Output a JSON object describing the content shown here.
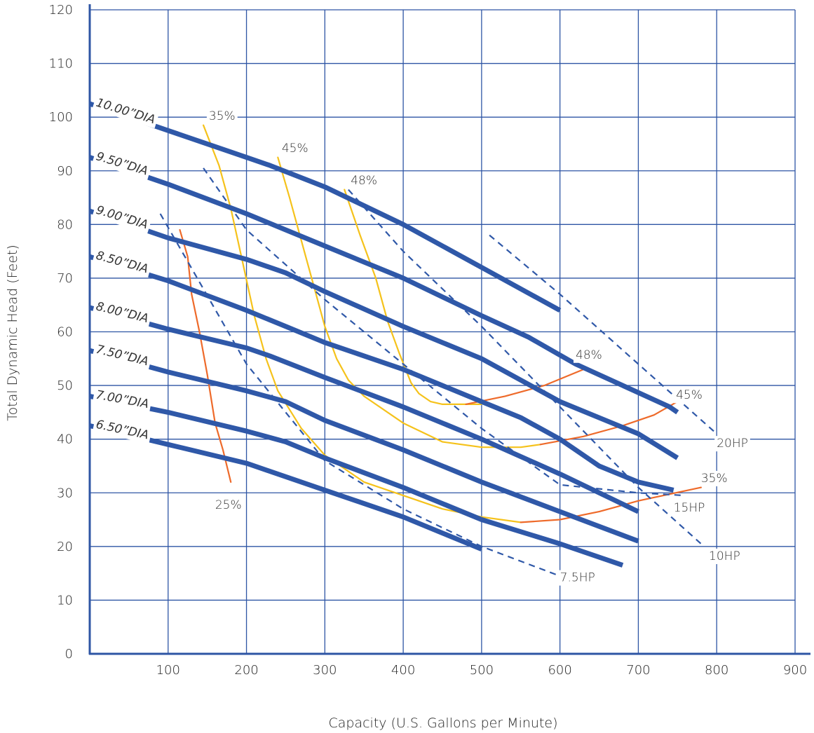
{
  "chart_data": {
    "type": "line",
    "xlabel": "Capacity (U.S. Gallons per Minute)",
    "ylabel": "Total Dynamic Head (Feet)",
    "xlim": [
      0,
      900
    ],
    "ylim": [
      0,
      120
    ],
    "xticks": [
      100,
      200,
      300,
      400,
      500,
      600,
      700,
      800,
      900
    ],
    "yticks": [
      0,
      10,
      20,
      30,
      40,
      50,
      60,
      70,
      80,
      90,
      100,
      110,
      120
    ],
    "grid": true,
    "colors": {
      "grid": "#2e55a4",
      "axis": "#2e55a4",
      "impeller": "#2f58a8",
      "horsepower": "#2f58a8",
      "eff_yellow": "#f5c21b",
      "eff_orange": "#ee6a2a"
    },
    "impeller_curves": [
      {
        "name": "10.00”DIA",
        "points": [
          [
            0,
            102.5
          ],
          [
            100,
            97.5
          ],
          [
            200,
            92.5
          ],
          [
            230,
            91
          ],
          [
            300,
            87
          ],
          [
            400,
            80
          ],
          [
            500,
            72
          ],
          [
            600,
            64
          ]
        ]
      },
      {
        "name": "9.50”DIA",
        "points": [
          [
            0,
            92.5
          ],
          [
            100,
            87.5
          ],
          [
            200,
            82
          ],
          [
            250,
            79
          ],
          [
            300,
            76
          ],
          [
            400,
            70
          ],
          [
            500,
            63
          ],
          [
            560,
            59
          ],
          [
            620,
            54
          ],
          [
            680,
            50
          ],
          [
            740,
            46
          ],
          [
            750,
            45
          ]
        ]
      },
      {
        "name": "9.00”DIA",
        "points": [
          [
            0,
            82.5
          ],
          [
            100,
            77.5
          ],
          [
            200,
            73.5
          ],
          [
            250,
            71
          ],
          [
            300,
            67.5
          ],
          [
            400,
            61
          ],
          [
            500,
            55
          ],
          [
            550,
            51
          ],
          [
            600,
            47
          ],
          [
            700,
            41
          ],
          [
            750,
            36.5
          ]
        ]
      },
      {
        "name": "8.50”DIA",
        "points": [
          [
            0,
            74
          ],
          [
            100,
            69.5
          ],
          [
            200,
            64
          ],
          [
            250,
            61
          ],
          [
            300,
            58
          ],
          [
            400,
            53
          ],
          [
            500,
            47
          ],
          [
            550,
            44
          ],
          [
            600,
            40
          ],
          [
            650,
            35
          ],
          [
            700,
            32
          ],
          [
            745,
            30.5
          ]
        ]
      },
      {
        "name": "8.00”DIA",
        "points": [
          [
            0,
            64.5
          ],
          [
            100,
            60.5
          ],
          [
            200,
            57
          ],
          [
            230,
            55.5
          ],
          [
            300,
            51.5
          ],
          [
            400,
            46
          ],
          [
            500,
            40
          ],
          [
            600,
            33.5
          ],
          [
            700,
            26.5
          ]
        ]
      },
      {
        "name": "7.50”DIA",
        "points": [
          [
            0,
            56.5
          ],
          [
            100,
            52.5
          ],
          [
            200,
            49
          ],
          [
            250,
            47
          ],
          [
            300,
            43.5
          ],
          [
            400,
            38
          ],
          [
            500,
            32
          ],
          [
            600,
            26.5
          ],
          [
            700,
            21
          ]
        ]
      },
      {
        "name": "7.00”DIA",
        "points": [
          [
            0,
            48
          ],
          [
            100,
            45
          ],
          [
            200,
            41.5
          ],
          [
            250,
            39.5
          ],
          [
            300,
            36.5
          ],
          [
            400,
            31
          ],
          [
            500,
            25
          ],
          [
            600,
            20.5
          ],
          [
            680,
            16.5
          ]
        ]
      },
      {
        "name": "6.50”DIA",
        "points": [
          [
            0,
            42.5
          ],
          [
            100,
            39
          ],
          [
            200,
            35.5
          ],
          [
            300,
            30.5
          ],
          [
            400,
            25.5
          ],
          [
            500,
            19.5
          ]
        ]
      }
    ],
    "horsepower_curves": [
      {
        "name": "20HP",
        "points": [
          [
            510,
            78
          ],
          [
            600,
            67
          ],
          [
            700,
            54
          ],
          [
            800,
            41
          ]
        ],
        "label_at": [
          800,
          38.5
        ]
      },
      {
        "name": "15HP",
        "points": [
          [
            145,
            90.5
          ],
          [
            200,
            79
          ],
          [
            300,
            66
          ],
          [
            400,
            54
          ],
          [
            500,
            42
          ],
          [
            600,
            31.5
          ],
          [
            700,
            30
          ],
          [
            760,
            29.5
          ]
        ],
        "label_at": [
          745,
          26.5
        ]
      },
      {
        "name": "10HP",
        "points": [
          [
            330,
            86.5
          ],
          [
            400,
            75
          ],
          [
            500,
            61
          ],
          [
            600,
            46
          ],
          [
            700,
            31
          ],
          [
            780,
            20.5
          ]
        ],
        "label_at": [
          790,
          17.5
        ]
      },
      {
        "name": "7.5HP",
        "points": [
          [
            90,
            82
          ],
          [
            200,
            54
          ],
          [
            300,
            36
          ],
          [
            400,
            27
          ],
          [
            500,
            20
          ],
          [
            600,
            14.5
          ]
        ],
        "label_at": [
          600,
          13.5
        ]
      }
    ],
    "efficiency_curves": [
      {
        "name": "35%",
        "color": "eff_yellow",
        "points": [
          [
            145,
            98.5
          ],
          [
            165,
            91
          ],
          [
            180,
            83
          ],
          [
            195,
            73
          ],
          [
            210,
            63
          ],
          [
            225,
            55
          ],
          [
            240,
            49
          ],
          [
            270,
            42
          ],
          [
            300,
            37
          ],
          [
            350,
            32
          ],
          [
            400,
            29.5
          ],
          [
            450,
            27
          ],
          [
            500,
            25.5
          ],
          [
            550,
            24.5
          ]
        ],
        "label_at": [
          152,
          99.5
        ]
      },
      {
        "name": "45%",
        "color": "eff_yellow",
        "points": [
          [
            240,
            92.5
          ],
          [
            255,
            85
          ],
          [
            270,
            77
          ],
          [
            285,
            69
          ],
          [
            300,
            61
          ],
          [
            315,
            55
          ],
          [
            330,
            51
          ],
          [
            350,
            48
          ],
          [
            400,
            43
          ],
          [
            450,
            39.5
          ],
          [
            500,
            38.5
          ],
          [
            550,
            38.5
          ],
          [
            575,
            39
          ]
        ],
        "label_at": [
          245,
          93.5
        ]
      },
      {
        "name": "48%",
        "color": "eff_yellow",
        "points": [
          [
            325,
            86.5
          ],
          [
            345,
            78
          ],
          [
            365,
            70
          ],
          [
            380,
            62
          ],
          [
            395,
            56
          ],
          [
            410,
            50.5
          ],
          [
            420,
            48.5
          ],
          [
            435,
            47
          ],
          [
            450,
            46.5
          ],
          [
            480,
            46.5
          ],
          [
            500,
            46.5
          ]
        ],
        "label_at": [
          333,
          87.5
        ]
      },
      {
        "name": "25%",
        "color": "eff_orange",
        "points": [
          [
            180,
            32
          ],
          [
            170,
            38
          ],
          [
            160,
            43
          ],
          [
            150,
            52
          ],
          [
            140,
            60
          ],
          [
            130,
            67
          ],
          [
            125,
            74
          ],
          [
            115,
            79
          ]
        ],
        "label_at": [
          160,
          27
        ]
      },
      {
        "name": "48%",
        "color": "eff_orange",
        "points": [
          [
            480,
            46.5
          ],
          [
            530,
            48
          ],
          [
            580,
            50
          ],
          [
            630,
            53
          ]
        ],
        "label_at": [
          620,
          55
        ]
      },
      {
        "name": "45%",
        "color": "eff_orange",
        "points": [
          [
            575,
            39
          ],
          [
            630,
            40.5
          ],
          [
            680,
            42.5
          ],
          [
            720,
            44.5
          ],
          [
            750,
            47
          ]
        ],
        "label_at": [
          748,
          47.5
        ]
      },
      {
        "name": "35%",
        "color": "eff_orange",
        "points": [
          [
            550,
            24.5
          ],
          [
            600,
            25
          ],
          [
            650,
            26.5
          ],
          [
            700,
            28.5
          ],
          [
            780,
            31
          ]
        ],
        "label_at": [
          780,
          32
        ]
      }
    ],
    "diameter_labels": [
      "10.00”DIA",
      "9.50”DIA",
      "9.00”DIA",
      "8.50”DIA",
      "8.00”DIA",
      "7.50”DIA",
      "7.00”DIA",
      "6.50”DIA"
    ]
  }
}
